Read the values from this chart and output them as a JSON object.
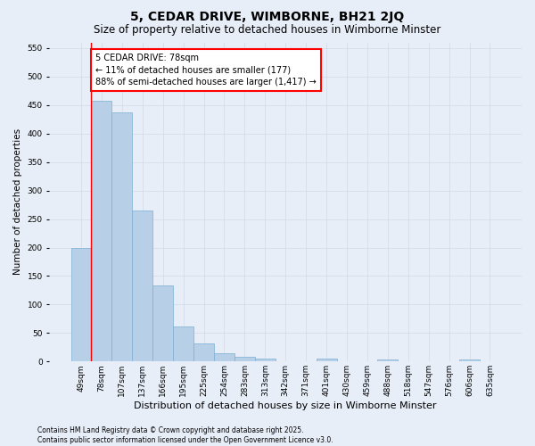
{
  "title": "5, CEDAR DRIVE, WIMBORNE, BH21 2JQ",
  "subtitle": "Size of property relative to detached houses in Wimborne Minster",
  "xlabel": "Distribution of detached houses by size in Wimborne Minster",
  "ylabel": "Number of detached properties",
  "categories": [
    "49sqm",
    "78sqm",
    "107sqm",
    "137sqm",
    "166sqm",
    "195sqm",
    "225sqm",
    "254sqm",
    "283sqm",
    "313sqm",
    "342sqm",
    "371sqm",
    "401sqm",
    "430sqm",
    "459sqm",
    "488sqm",
    "518sqm",
    "547sqm",
    "576sqm",
    "606sqm",
    "635sqm"
  ],
  "values": [
    200,
    457,
    437,
    265,
    133,
    62,
    31,
    14,
    8,
    5,
    0,
    0,
    5,
    0,
    0,
    3,
    0,
    0,
    0,
    3,
    0
  ],
  "bar_color": "#b8cfe8",
  "bar_edge_color": "#7bafd4",
  "vline_color": "red",
  "vline_index": 1,
  "annotation_text": "5 CEDAR DRIVE: 78sqm\n← 11% of detached houses are smaller (177)\n88% of semi-detached houses are larger (1,417) →",
  "annotation_box_color": "white",
  "annotation_box_edge_color": "red",
  "ylim": [
    0,
    560
  ],
  "yticks": [
    0,
    50,
    100,
    150,
    200,
    250,
    300,
    350,
    400,
    450,
    500,
    550
  ],
  "grid_color": "#d0d8e8",
  "background_color": "#e8eef8",
  "footer": "Contains HM Land Registry data © Crown copyright and database right 2025.\nContains public sector information licensed under the Open Government Licence v3.0.",
  "title_fontsize": 10,
  "subtitle_fontsize": 8.5,
  "tick_fontsize": 6.5,
  "ylabel_fontsize": 7.5,
  "xlabel_fontsize": 8,
  "footer_fontsize": 5.5,
  "annotation_fontsize": 7
}
